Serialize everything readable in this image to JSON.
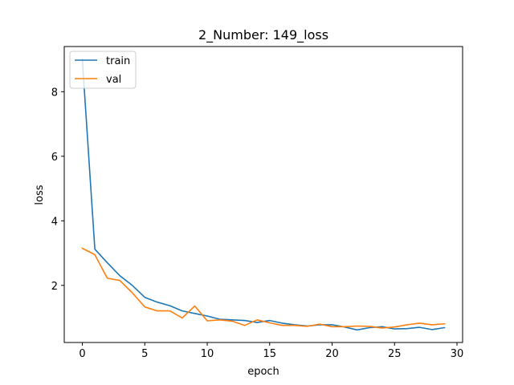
{
  "chart_data": {
    "type": "line",
    "title": "2_Number: 149_loss",
    "xlabel": "epoch",
    "ylabel": "loss",
    "xlim": [
      -1.45,
      30.45
    ],
    "ylim": [
      0.23,
      9.4
    ],
    "xticks": [
      0,
      5,
      10,
      15,
      20,
      25,
      30
    ],
    "yticks": [
      2,
      4,
      6,
      8
    ],
    "grid": false,
    "legend_position": "top-left",
    "x": [
      0,
      1,
      2,
      3,
      4,
      5,
      6,
      7,
      8,
      9,
      10,
      11,
      12,
      13,
      14,
      15,
      16,
      17,
      18,
      19,
      20,
      21,
      22,
      23,
      24,
      25,
      26,
      27,
      28,
      29
    ],
    "series": [
      {
        "name": "train",
        "color": "#1f77b4",
        "values": [
          9.0,
          3.12,
          2.7,
          2.3,
          2.0,
          1.63,
          1.48,
          1.37,
          1.21,
          1.13,
          1.05,
          0.95,
          0.93,
          0.91,
          0.85,
          0.91,
          0.83,
          0.78,
          0.74,
          0.78,
          0.78,
          0.71,
          0.62,
          0.69,
          0.72,
          0.65,
          0.66,
          0.7,
          0.63,
          0.69
        ]
      },
      {
        "name": "val",
        "color": "#ff7f0e",
        "values": [
          3.15,
          2.95,
          2.22,
          2.15,
          1.77,
          1.33,
          1.21,
          1.21,
          0.99,
          1.36,
          0.9,
          0.93,
          0.89,
          0.76,
          0.93,
          0.84,
          0.76,
          0.76,
          0.73,
          0.8,
          0.72,
          0.72,
          0.74,
          0.73,
          0.68,
          0.71,
          0.78,
          0.83,
          0.78,
          0.81
        ]
      }
    ]
  }
}
